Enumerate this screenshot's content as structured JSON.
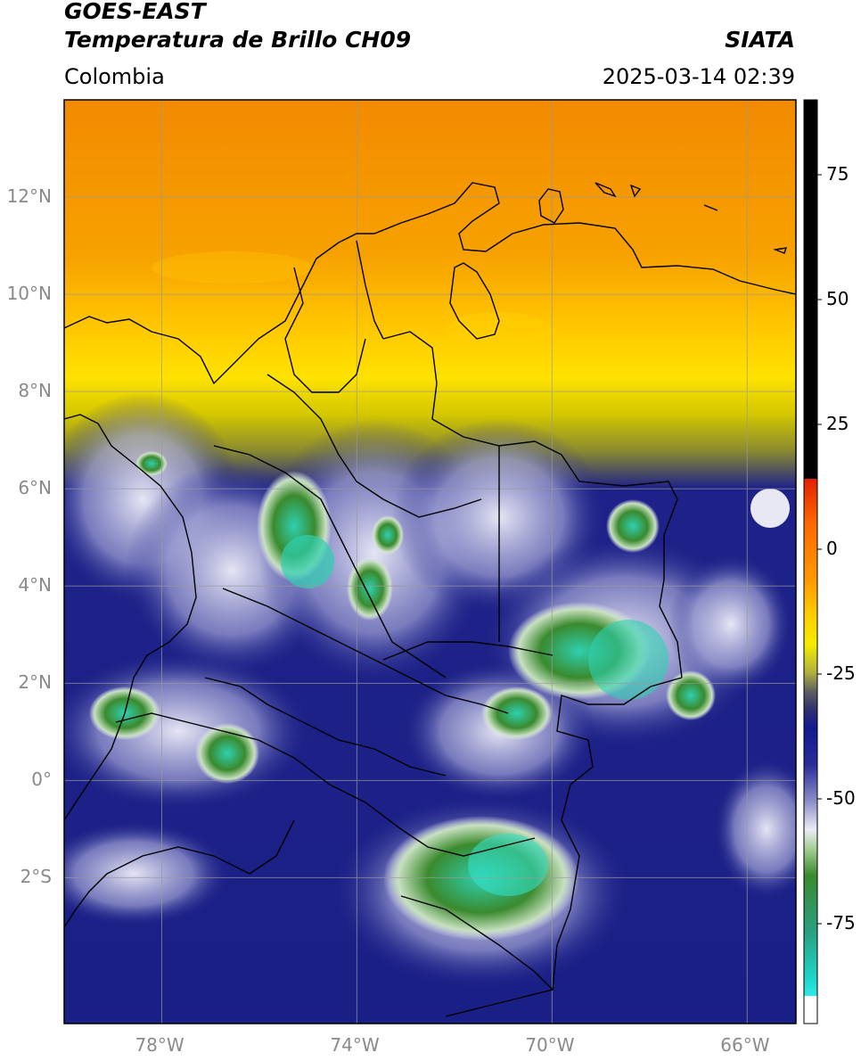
{
  "header": {
    "satellite": "GOES-EAST",
    "product": "Temperatura de Brillo CH09",
    "region": "Colombia",
    "org": "SIATA",
    "datetime": "2025-03-14 02:39"
  },
  "map": {
    "lon_range": [
      -80,
      -65
    ],
    "lat_range": [
      -5,
      14
    ],
    "lon_ticks": [
      {
        "lon": -78,
        "label": "78°W"
      },
      {
        "lon": -74,
        "label": "74°W"
      },
      {
        "lon": -70,
        "label": "70°W"
      },
      {
        "lon": -66,
        "label": "66°W"
      }
    ],
    "lat_ticks": [
      {
        "lat": 12,
        "label": "12°N"
      },
      {
        "lat": 10,
        "label": "10°N"
      },
      {
        "lat": 8,
        "label": "8°N"
      },
      {
        "lat": 6,
        "label": "6°N"
      },
      {
        "lat": 4,
        "label": "4°N"
      },
      {
        "lat": 2,
        "label": "2°N"
      },
      {
        "lat": 0,
        "label": "0°"
      },
      {
        "lat": -2,
        "label": "2°S"
      }
    ],
    "gridlines": true
  },
  "colorbar": {
    "range": [
      -95,
      90
    ],
    "ticks": [
      {
        "value": 75,
        "label": "75"
      },
      {
        "value": 50,
        "label": "50"
      },
      {
        "value": 25,
        "label": "25"
      },
      {
        "value": 0,
        "label": "0"
      },
      {
        "value": -25,
        "label": "-25"
      },
      {
        "value": -50,
        "label": "-50"
      },
      {
        "value": -75,
        "label": "-75"
      }
    ]
  },
  "palette": {
    "warm_orange": "#f39200",
    "yellow": "#ffe800",
    "navy": "#1a1f86",
    "light_lavender": "#c8c8e8",
    "green": "#3a8a2e",
    "teal": "#2fd0b0",
    "red": "#e82000"
  }
}
